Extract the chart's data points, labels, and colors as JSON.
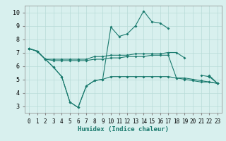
{
  "x": [
    0,
    1,
    2,
    3,
    4,
    5,
    6,
    7,
    8,
    9,
    10,
    11,
    12,
    13,
    14,
    15,
    16,
    17,
    18,
    19,
    20,
    21,
    22,
    23
  ],
  "line_top": [
    7.3,
    7.1,
    6.5,
    5.9,
    5.2,
    3.3,
    2.9,
    4.5,
    4.9,
    5.0,
    8.9,
    8.2,
    8.4,
    9.0,
    10.1,
    9.3,
    9.2,
    8.8,
    null,
    null,
    null,
    5.3,
    5.2,
    4.7
  ],
  "line_mid_upper": [
    7.3,
    7.1,
    6.5,
    6.5,
    6.5,
    6.5,
    6.5,
    6.5,
    6.7,
    6.7,
    6.8,
    6.8,
    6.8,
    6.9,
    6.9,
    6.9,
    6.9,
    7.0,
    7.0,
    6.6,
    null,
    null,
    5.3,
    4.7
  ],
  "line_mid_lower": [
    7.3,
    7.1,
    6.5,
    6.4,
    6.4,
    6.4,
    6.4,
    6.4,
    6.5,
    6.5,
    6.6,
    6.6,
    6.7,
    6.7,
    6.7,
    6.8,
    6.8,
    6.8,
    5.1,
    5.1,
    5.0,
    4.9,
    4.8,
    4.7
  ],
  "line_bottom": [
    7.3,
    7.1,
    6.5,
    5.9,
    5.2,
    3.3,
    2.9,
    4.5,
    4.9,
    5.0,
    5.2,
    5.2,
    5.2,
    5.2,
    5.2,
    5.2,
    5.2,
    5.2,
    5.1,
    5.0,
    4.9,
    4.8,
    4.8,
    4.7
  ],
  "color": "#1a7a6e",
  "bg_color": "#d8f0ee",
  "grid_color": "#b8dbd8",
  "ylim": [
    2.5,
    10.5
  ],
  "yticks": [
    3,
    4,
    5,
    6,
    7,
    8,
    9,
    10
  ],
  "xlabel": "Humidex (Indice chaleur)",
  "xlabel_fontsize": 6.5,
  "tick_fontsize": 5.5,
  "lw": 0.8,
  "ms": 2.0
}
